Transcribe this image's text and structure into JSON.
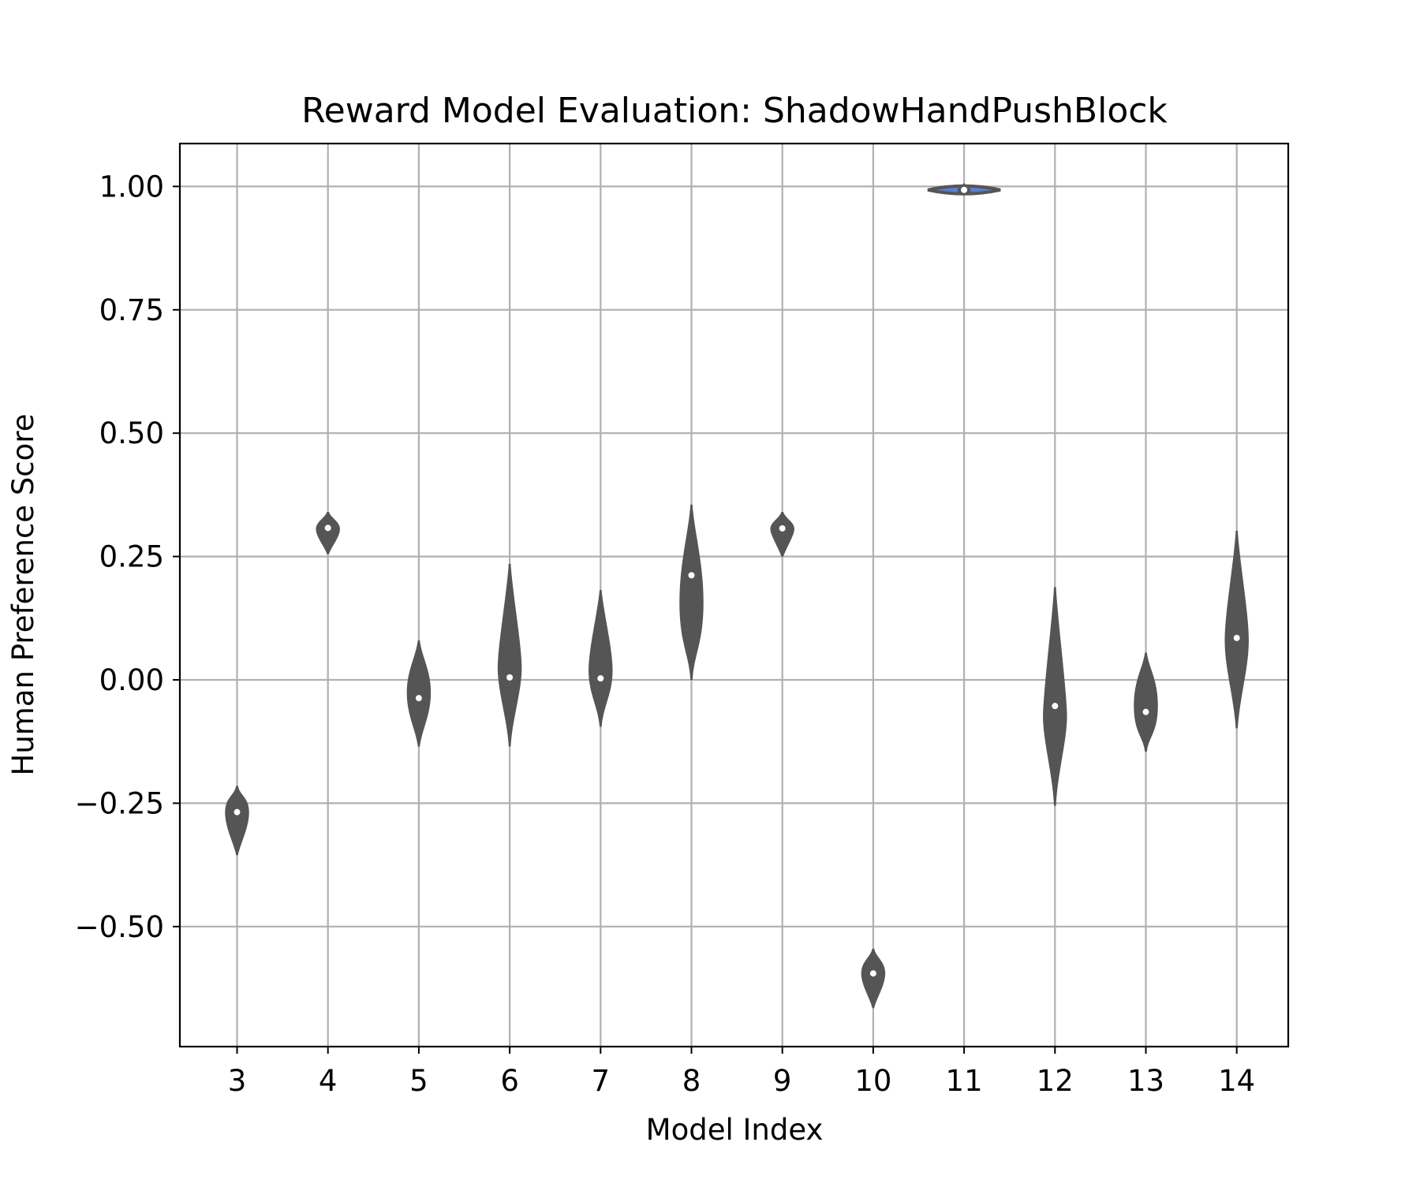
{
  "chart_data": {
    "type": "violin",
    "title": "Reward Model Evaluation: ShadowHandPushBlock",
    "xlabel": "Model Index",
    "ylabel": "Human Preference Score",
    "categories": [
      "3",
      "4",
      "5",
      "6",
      "7",
      "8",
      "9",
      "10",
      "11",
      "12",
      "13",
      "14"
    ],
    "ylim": [
      -0.74,
      1.09
    ],
    "yticks": [
      1.0,
      0.75,
      0.5,
      0.25,
      0.0,
      -0.25,
      -0.5
    ],
    "ytick_labels": [
      "1.00",
      "0.75",
      "0.50",
      "0.25",
      "0.00",
      "−0.25",
      "−0.50"
    ],
    "grid": true,
    "violin_color": "#555555",
    "median_color": "#ffffff",
    "accent_color": "#5b7fd0",
    "violins": [
      {
        "category": "3",
        "min": -0.355,
        "q1": -0.295,
        "median": -0.268,
        "q3": -0.243,
        "max": -0.215
      },
      {
        "category": "4",
        "min": 0.255,
        "q1": 0.293,
        "median": 0.308,
        "q3": 0.318,
        "max": 0.34
      },
      {
        "category": "5",
        "min": -0.135,
        "q1": -0.065,
        "median": -0.037,
        "q3": 0.013,
        "max": 0.08
      },
      {
        "category": "6",
        "min": -0.135,
        "q1": -0.015,
        "median": 0.005,
        "q3": 0.063,
        "max": 0.235
      },
      {
        "category": "7",
        "min": -0.095,
        "q1": -0.02,
        "median": 0.003,
        "q3": 0.057,
        "max": 0.182
      },
      {
        "category": "8",
        "min": 0.0,
        "q1": 0.088,
        "median": 0.212,
        "q3": 0.225,
        "max": 0.355
      },
      {
        "category": "9",
        "min": 0.25,
        "q1": 0.295,
        "median": 0.307,
        "q3": 0.317,
        "max": 0.34
      },
      {
        "category": "10",
        "min": -0.665,
        "q1": -0.615,
        "median": -0.595,
        "q3": -0.575,
        "max": -0.545
      },
      {
        "category": "11",
        "min": 0.982,
        "q1": 0.988,
        "median": 0.993,
        "q3": 0.997,
        "max": 1.006
      },
      {
        "category": "12",
        "min": -0.255,
        "q1": -0.115,
        "median": -0.053,
        "q3": -0.032,
        "max": 0.188
      },
      {
        "category": "13",
        "min": -0.145,
        "q1": -0.098,
        "median": -0.065,
        "q3": -0.007,
        "max": 0.055
      },
      {
        "category": "14",
        "min": -0.098,
        "q1": 0.032,
        "median": 0.085,
        "q3": 0.127,
        "max": 0.302
      }
    ]
  }
}
